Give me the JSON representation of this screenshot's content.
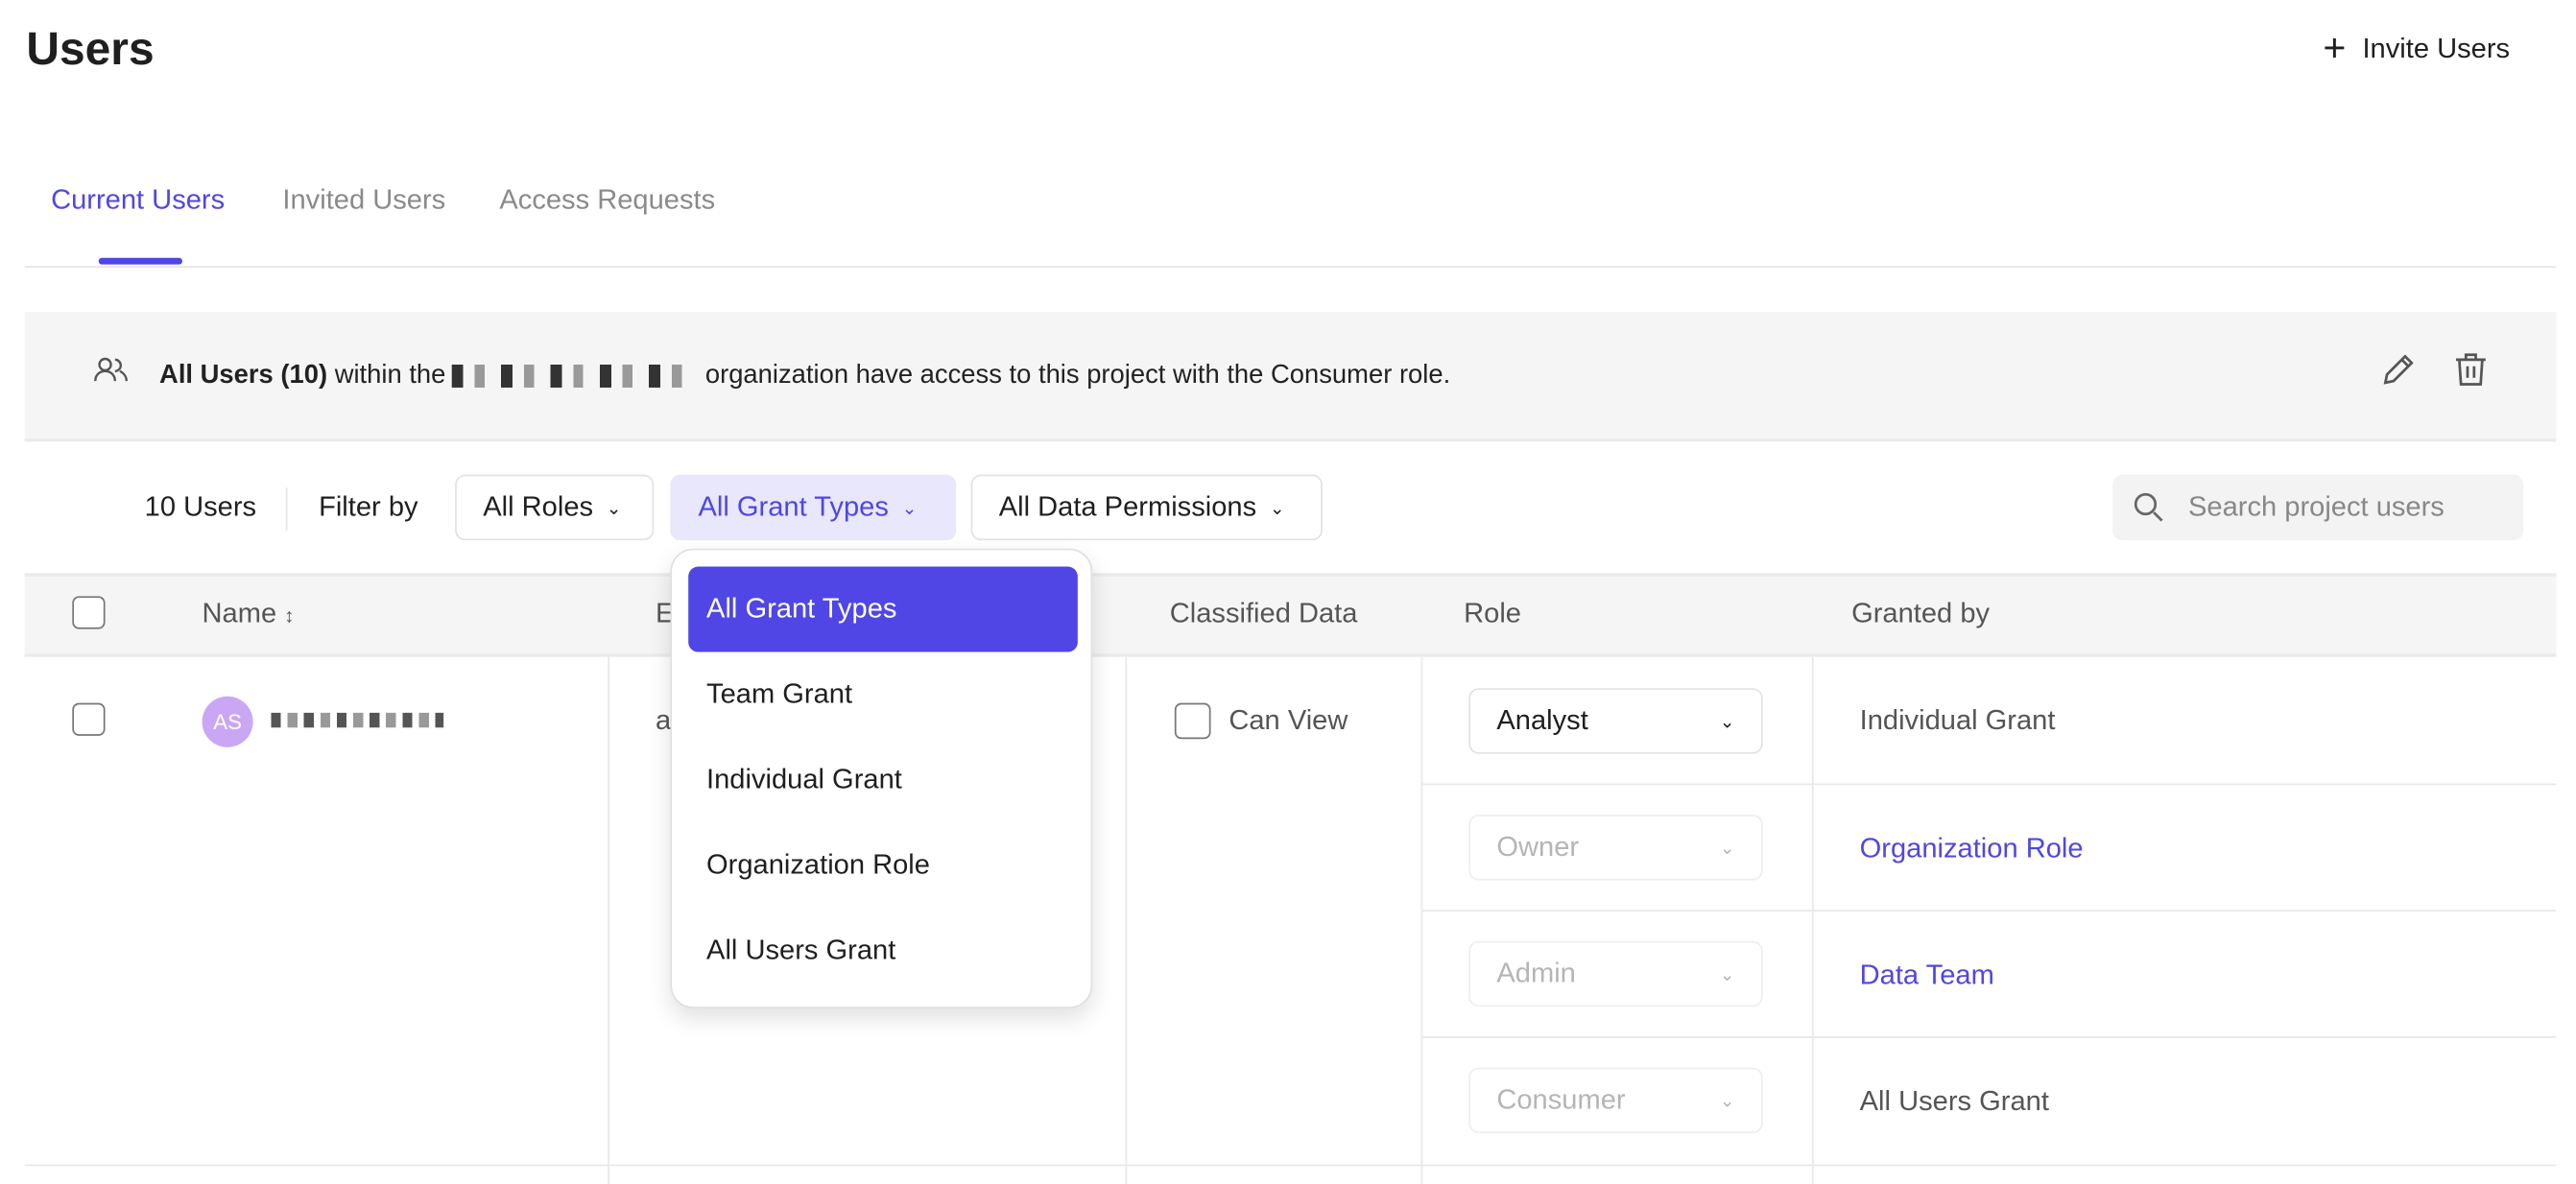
{
  "header": {
    "title": "Users",
    "invite_label": "Invite Users"
  },
  "tabs": [
    {
      "label": "Current Users",
      "active": true
    },
    {
      "label": "Invited Users"
    },
    {
      "label": "Access Requests"
    }
  ],
  "banner": {
    "bold": "All Users (10)",
    "pre": " within the",
    "post": "organization have access to this project with the Consumer role."
  },
  "filters": {
    "count": "10 Users",
    "filter_by": "Filter by",
    "roles": "All Roles",
    "grant_types": "All Grant Types",
    "data_permissions": "All Data Permissions",
    "search_placeholder": "Search project users"
  },
  "table": {
    "headers": {
      "name": "Name",
      "email": "E",
      "classified": "Classified Data",
      "role": "Role",
      "granted_by": "Granted by"
    },
    "rows": [
      {
        "initials": "AS",
        "email": "a",
        "classified": "Can View",
        "grants": [
          {
            "role": "Analyst",
            "granted_by": "Individual Grant"
          },
          {
            "role": "Owner",
            "granted_by": "Organization Role"
          },
          {
            "role": "Admin",
            "granted_by": "Data Team"
          },
          {
            "role": "Consumer",
            "granted_by": "All Users Grant"
          }
        ]
      }
    ]
  },
  "grant_menu": {
    "items": [
      "All Grant Types",
      "Team Grant",
      "Individual Grant",
      "Organization Role",
      "All Users Grant"
    ],
    "selected": "All Grant Types"
  },
  "colors": {
    "accent": "#4f46e5",
    "avatar": "#c9a7f5"
  }
}
